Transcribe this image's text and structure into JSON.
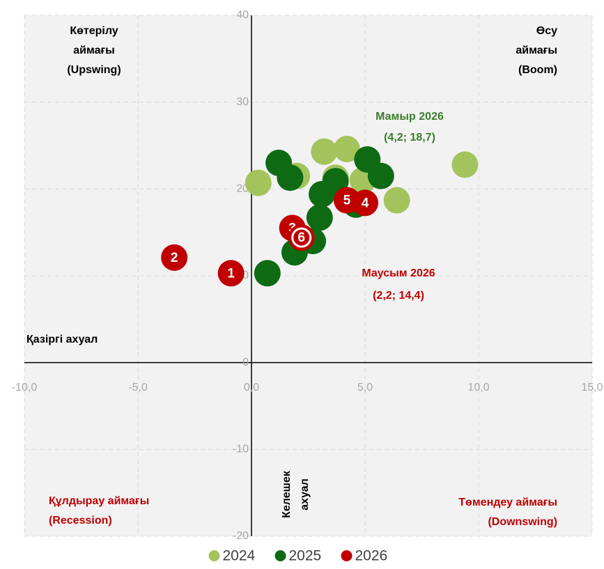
{
  "chart_data": {
    "type": "scatter",
    "xlim": [
      -10,
      15
    ],
    "ylim": [
      -20,
      40
    ],
    "xticks": [
      {
        "value": -10,
        "label": "-10,0"
      },
      {
        "value": -5,
        "label": "-5,0"
      },
      {
        "value": 0,
        "label": "0,0"
      },
      {
        "value": 5,
        "label": "5,0"
      },
      {
        "value": 10,
        "label": "10,0"
      },
      {
        "value": 15,
        "label": "15,0"
      }
    ],
    "yticks": [
      40,
      30,
      20,
      10,
      0,
      -10,
      -20
    ],
    "grid": true,
    "legend": "bottom",
    "series": [
      {
        "name": "2024",
        "color": "#a3c45c",
        "x": [
          0.3,
          2.0,
          3.2,
          4.2,
          3.7,
          4.9,
          6.4,
          9.4
        ],
        "values": [
          20.7,
          21.5,
          24.3,
          24.6,
          21.3,
          21.0,
          18.7,
          22.8
        ]
      },
      {
        "name": "2025",
        "color": "#0e6b14",
        "x": [
          1.2,
          1.7,
          5.1,
          5.7,
          3.7,
          3.1,
          4.6,
          3.0,
          2.7,
          1.9,
          0.7
        ],
        "values": [
          23.0,
          21.3,
          23.4,
          21.5,
          20.9,
          19.4,
          18.2,
          16.7,
          14.0,
          12.7,
          10.3
        ]
      },
      {
        "name": "2026",
        "color": "#c00000",
        "x": [
          -0.9,
          -3.4,
          1.8,
          5.0,
          4.2,
          2.2
        ],
        "values": [
          10.3,
          12.1,
          15.5,
          18.4,
          18.7,
          14.4
        ],
        "labels": [
          "1",
          "2",
          "3",
          "4",
          "5",
          "6"
        ],
        "highlight_index": 5
      }
    ],
    "annotations": [
      {
        "lines": [
          "Көтерілу",
          "аймағы",
          "(Upswing)"
        ],
        "color": "#000000"
      },
      {
        "lines": [
          "Өсу",
          "аймағы",
          "(Boom)"
        ],
        "color": "#000000"
      },
      {
        "lines": [
          "Мамыр 2026",
          "(4,2; 18,7)"
        ],
        "color": "#3a7d2c"
      },
      {
        "lines": [
          "Маусым 2026",
          "(2,2; 14,4)"
        ],
        "color": "#c00000"
      },
      {
        "lines": [
          "Қазіргі ахуал"
        ],
        "color": "#000000"
      },
      {
        "lines": [
          "Құлдырау аймағы",
          "(Recession)"
        ],
        "color": "#c00000"
      },
      {
        "lines": [
          "Төмендеу аймағы",
          "(Downswing)"
        ],
        "color": "#c00000"
      },
      {
        "lines": [
          "Келешек",
          "ахуал"
        ],
        "color": "#000000"
      }
    ]
  }
}
